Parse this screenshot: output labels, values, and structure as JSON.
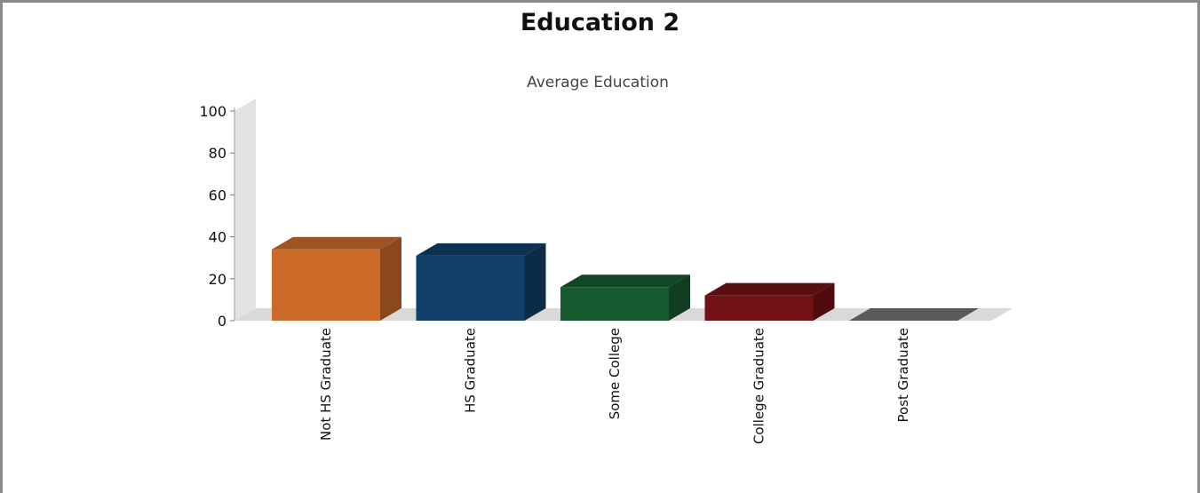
{
  "chart_data": {
    "type": "bar",
    "title": "Education 2",
    "subtitle": "Average Education",
    "categories": [
      "Not HS Graduate",
      "HS Graduate",
      "Some College",
      "College Graduate",
      "Post Graduate"
    ],
    "values": [
      34,
      31,
      16,
      12,
      0
    ],
    "colors": [
      "#cc6a2a",
      "#113f69",
      "#175a30",
      "#721216",
      "#5a5a5a"
    ],
    "ylim": [
      0,
      100
    ],
    "yticks": [
      0,
      20,
      40,
      60,
      80,
      100
    ],
    "xlabel": "",
    "ylabel": "",
    "grid": false,
    "legend": "none",
    "style": "3d"
  }
}
